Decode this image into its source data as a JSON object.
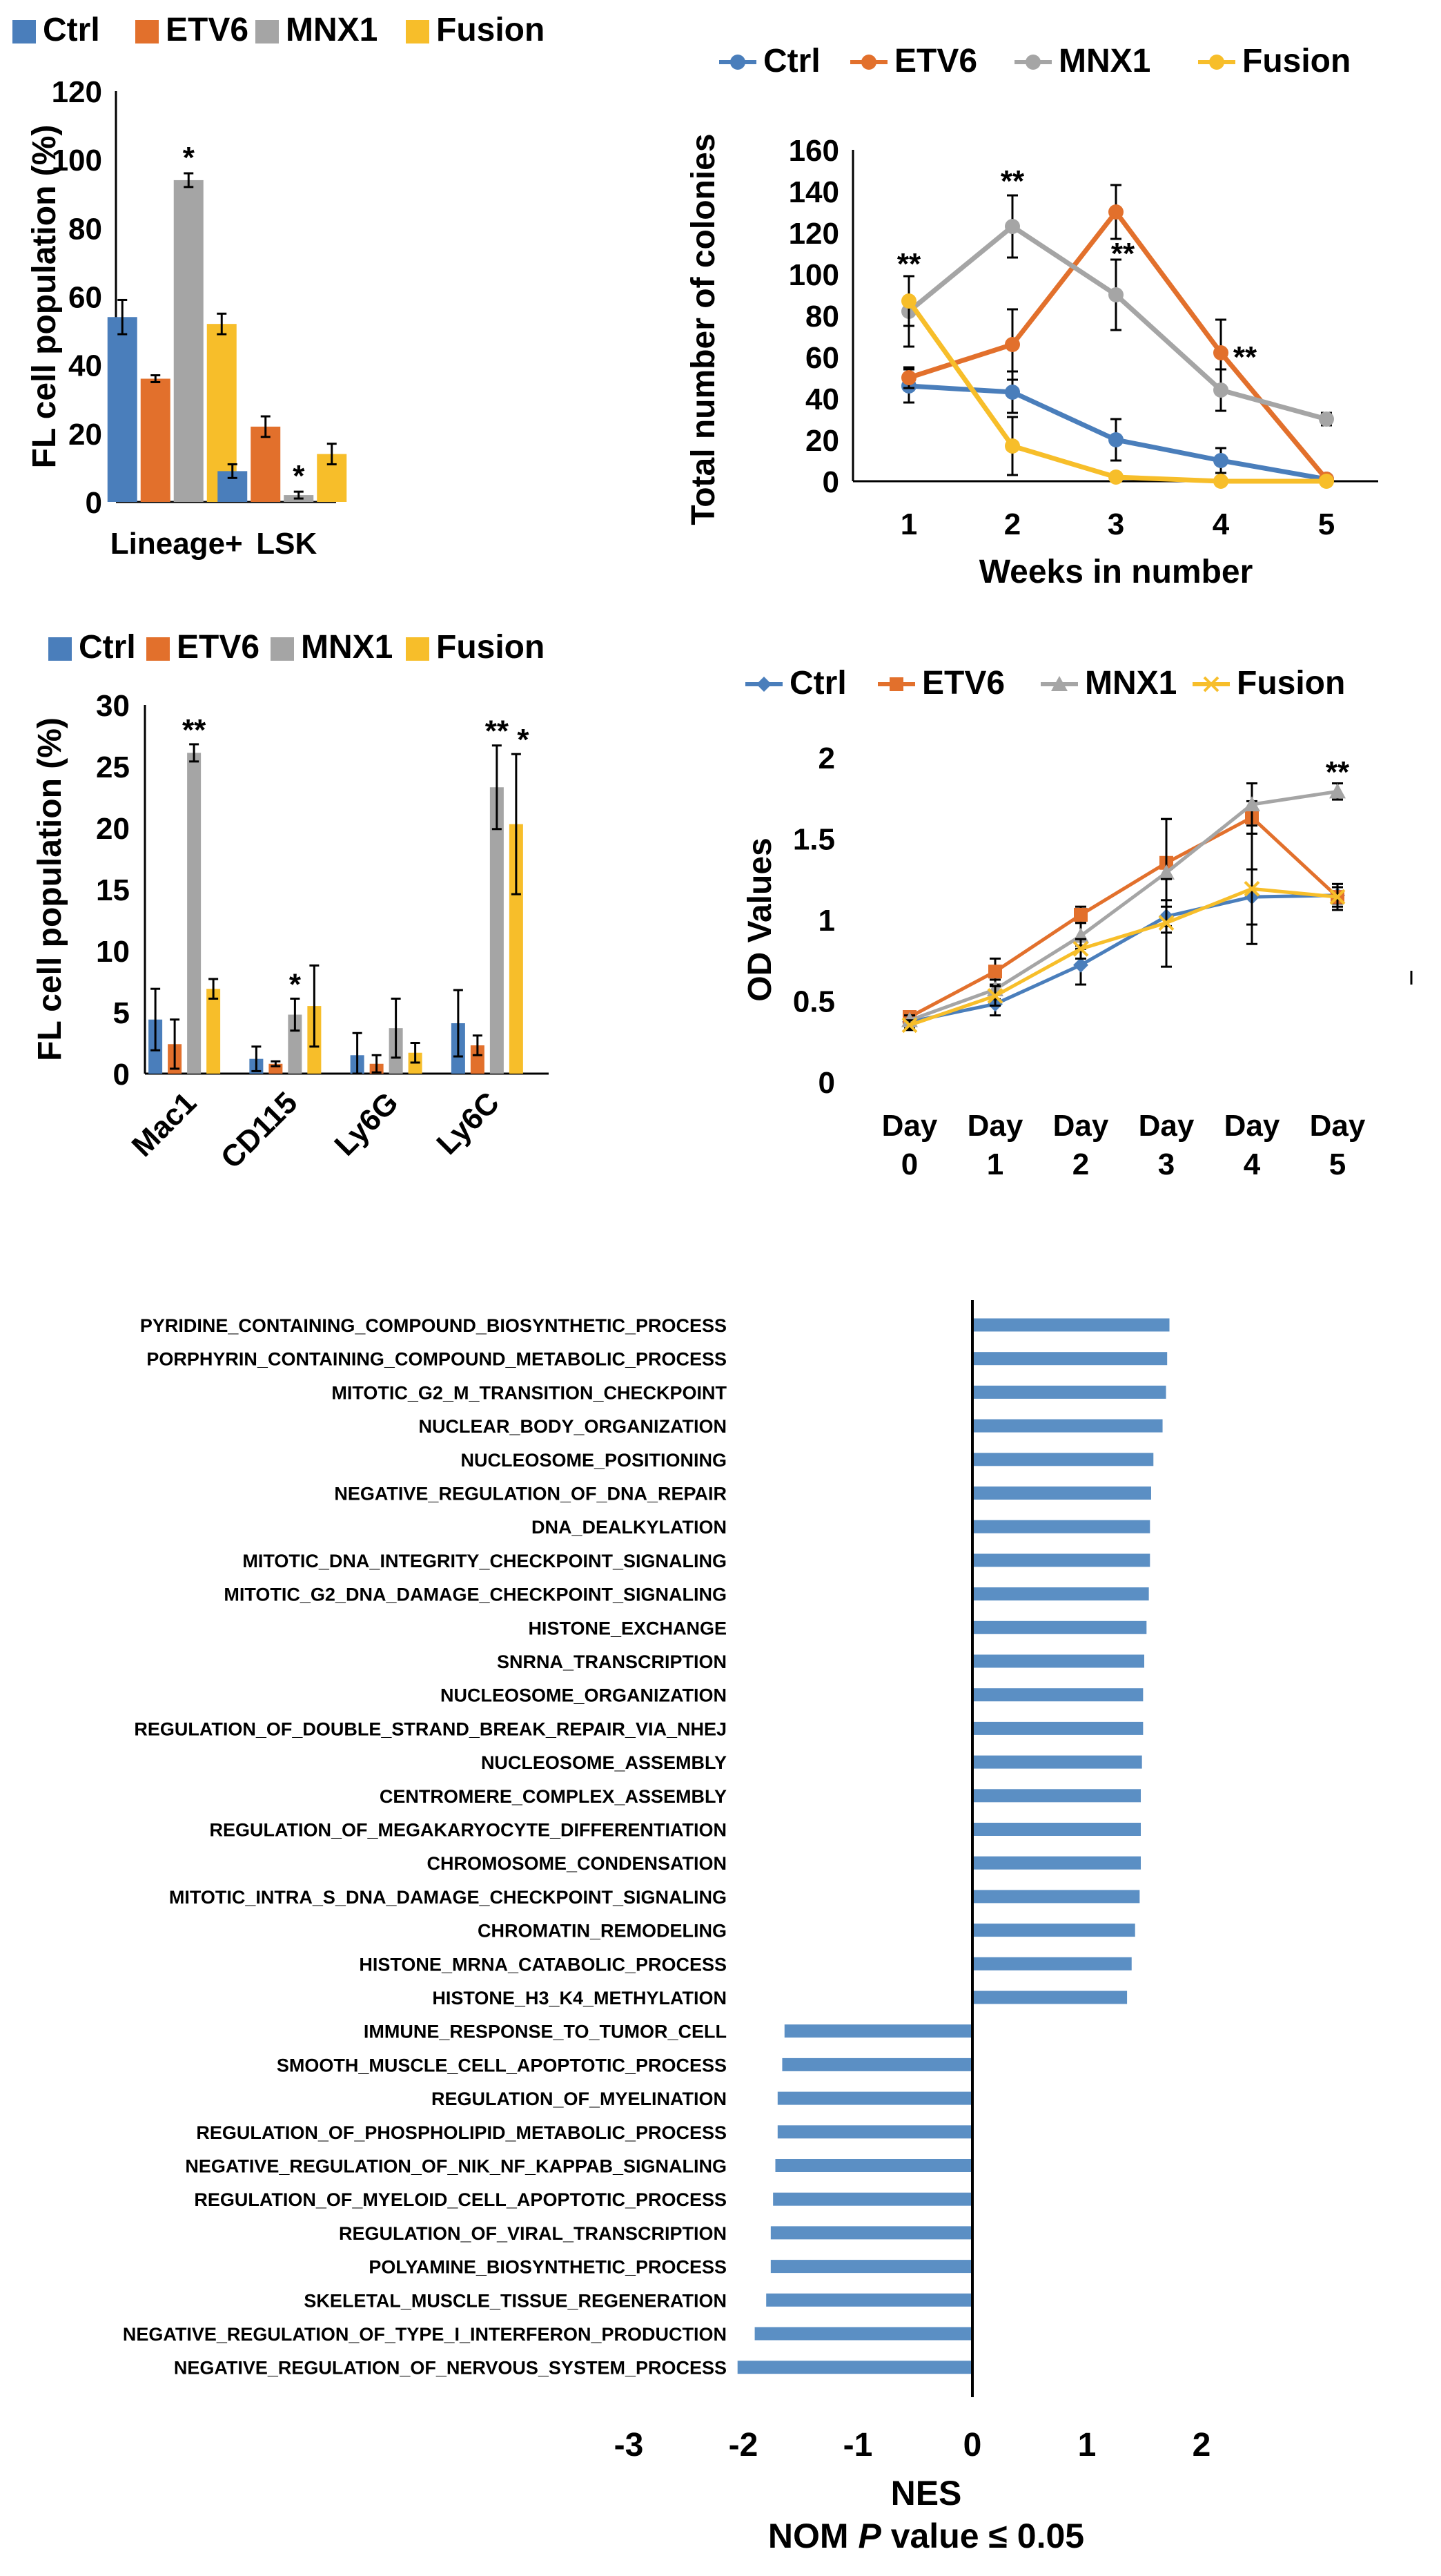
{
  "colors": {
    "Ctrl": "#4a7ebb",
    "ETV6": "#e2702c",
    "MNX1": "#a5a5a5",
    "Fusion": "#f7be2a",
    "gsea_bar": "#5b8fc4"
  },
  "chart_data": [
    {
      "id": "fl_lineage",
      "type": "bar",
      "legend": [
        "Ctrl",
        "ETV6",
        "MNX1",
        "Fusion"
      ],
      "categories": [
        "Lineage+",
        "LSK"
      ],
      "series": [
        {
          "name": "Ctrl",
          "values": [
            54,
            9
          ],
          "errors": [
            5,
            2
          ]
        },
        {
          "name": "ETV6",
          "values": [
            36,
            22
          ],
          "errors": [
            1,
            3
          ]
        },
        {
          "name": "MNX1",
          "values": [
            94,
            2
          ],
          "errors": [
            2,
            1
          ]
        },
        {
          "name": "Fusion",
          "values": [
            52,
            14
          ],
          "errors": [
            3,
            3
          ]
        }
      ],
      "annotations": [
        {
          "category": 0,
          "series": "MNX1",
          "text": "*"
        },
        {
          "category": 1,
          "series": "MNX1",
          "text": "*"
        }
      ],
      "ylabel": "FL cell population (%)",
      "ylim": [
        0,
        120
      ],
      "yticks": [
        "0",
        "20",
        "40",
        "60",
        "80",
        "100",
        "120"
      ]
    },
    {
      "id": "colonies",
      "type": "line",
      "legend": [
        "Ctrl",
        "ETV6",
        "MNX1",
        "Fusion"
      ],
      "x": [
        "1",
        "2",
        "3",
        "4",
        "5"
      ],
      "series": [
        {
          "name": "Ctrl",
          "values": [
            46,
            43,
            20,
            10,
            1
          ],
          "errors": [
            8,
            10,
            10,
            6,
            1
          ]
        },
        {
          "name": "ETV6",
          "values": [
            50,
            66,
            130,
            62,
            1
          ],
          "errors": [
            5,
            17,
            13,
            16,
            1
          ]
        },
        {
          "name": "MNX1",
          "values": [
            82,
            123,
            90,
            44,
            30
          ],
          "errors": [
            17,
            15,
            17,
            10,
            3
          ]
        },
        {
          "name": "Fusion",
          "values": [
            87,
            17,
            2,
            0,
            0
          ],
          "errors": [
            12,
            14,
            1,
            0,
            0
          ]
        }
      ],
      "annotations": [
        {
          "index": 0,
          "value": 100,
          "text": "**"
        },
        {
          "index": 1,
          "value": 140,
          "text": "**"
        },
        {
          "index": 2,
          "value": 105,
          "text": "**"
        },
        {
          "index": 3,
          "value": 55,
          "text": "**"
        }
      ],
      "xlabel": "Weeks in number",
      "ylabel": "Total number of colonies",
      "ylim": [
        0,
        160
      ],
      "yticks": [
        "0",
        "20",
        "40",
        "60",
        "80",
        "100",
        "120",
        "140",
        "160"
      ]
    },
    {
      "id": "fl_myeloid",
      "type": "bar",
      "legend": [
        "Ctrl",
        "ETV6",
        "MNX1",
        "Fusion"
      ],
      "categories": [
        "Mac1",
        "CD115",
        "Ly6G",
        "Ly6C"
      ],
      "series": [
        {
          "name": "Ctrl",
          "values": [
            4.4,
            1.2,
            1.5,
            4.1
          ],
          "errors": [
            2.5,
            1.0,
            1.8,
            2.7
          ]
        },
        {
          "name": "ETV6",
          "values": [
            2.4,
            0.8,
            0.8,
            2.3
          ],
          "errors": [
            2.0,
            0.2,
            0.7,
            0.8
          ]
        },
        {
          "name": "MNX1",
          "values": [
            26.1,
            4.8,
            3.7,
            23.3
          ],
          "errors": [
            0.7,
            1.3,
            2.4,
            3.4
          ]
        },
        {
          "name": "Fusion",
          "values": [
            6.9,
            5.5,
            1.7,
            20.3
          ],
          "errors": [
            0.8,
            3.3,
            0.8,
            5.7
          ]
        }
      ],
      "annotations": [
        {
          "category": 0,
          "series": "MNX1",
          "text": "**"
        },
        {
          "category": 1,
          "series": "MNX1",
          "text": "*"
        },
        {
          "category": 3,
          "series": "MNX1",
          "text": "**"
        },
        {
          "category": 3,
          "series": "Fusion",
          "text": "*"
        }
      ],
      "ylabel": "FL cell population (%)",
      "ylim": [
        0,
        30
      ],
      "yticks": [
        "0",
        "5",
        "10",
        "15",
        "20",
        "25",
        "30"
      ]
    },
    {
      "id": "od_values",
      "type": "line",
      "legend": [
        "Ctrl",
        "ETV6",
        "MNX1",
        "Fusion"
      ],
      "x": [
        "Day 0",
        "Day 1",
        "Day 2",
        "Day 3",
        "Day 4",
        "Day 5"
      ],
      "x_lines": [
        [
          "Day",
          "0"
        ],
        [
          "Day",
          "1"
        ],
        [
          "Day",
          "2"
        ],
        [
          "Day",
          "3"
        ],
        [
          "Day",
          "4"
        ],
        [
          "Day",
          "5"
        ]
      ],
      "series": [
        {
          "name": "Ctrl",
          "values": [
            0.37,
            0.48,
            0.72,
            1.02,
            1.14,
            1.15
          ],
          "errors": [
            0.04,
            0.07,
            0.12,
            0.1,
            0.17,
            0.05
          ],
          "marker": "diamond"
        },
        {
          "name": "ETV6",
          "values": [
            0.4,
            0.68,
            1.03,
            1.35,
            1.63,
            1.14
          ],
          "errors": [
            0.03,
            0.08,
            0.05,
            0.27,
            0.1,
            0.08
          ],
          "marker": "square"
        },
        {
          "name": "MNX1",
          "values": [
            0.38,
            0.57,
            0.9,
            1.29,
            1.71,
            1.79
          ],
          "errors": [
            0.03,
            0.06,
            0.08,
            0.33,
            0.13,
            0.05
          ],
          "marker": "triangle"
        },
        {
          "name": "Fusion",
          "values": [
            0.35,
            0.53,
            0.82,
            0.98,
            1.19,
            1.14
          ],
          "errors": [
            0.03,
            0.06,
            0.06,
            0.27,
            0.34,
            0.06
          ],
          "marker": "x"
        }
      ],
      "annotations": [
        {
          "index": 5,
          "value": 1.88,
          "text": "**"
        }
      ],
      "ylabel": "OD Values",
      "ylim": [
        0,
        2
      ],
      "yticks": [
        "0",
        "0.5",
        "1",
        "1.5",
        "2"
      ]
    },
    {
      "id": "gsea_nes",
      "type": "bar",
      "orientation": "horizontal",
      "categories": [
        "PYRIDINE_CONTAINING_COMPOUND_BIOSYNTHETIC_PROCESS",
        "PORPHYRIN_CONTAINING_COMPOUND_METABOLIC_PROCESS",
        "MITOTIC_G2_M_TRANSITION_CHECKPOINT",
        "NUCLEAR_BODY_ORGANIZATION",
        "NUCLEOSOME_POSITIONING",
        "NEGATIVE_REGULATION_OF_DNA_REPAIR",
        "DNA_DEALKYLATION",
        "MITOTIC_DNA_INTEGRITY_CHECKPOINT_SIGNALING",
        "MITOTIC_G2_DNA_DAMAGE_CHECKPOINT_SIGNALING",
        "HISTONE_EXCHANGE",
        "SNRNA_TRANSCRIPTION",
        "NUCLEOSOME_ORGANIZATION",
        "REGULATION_OF_DOUBLE_STRAND_BREAK_REPAIR_VIA_NHEJ",
        "NUCLEOSOME_ASSEMBLY",
        "CENTROMERE_COMPLEX_ASSEMBLY",
        "REGULATION_OF_MEGAKARYOCYTE_DIFFERENTIATION",
        "CHROMOSOME_CONDENSATION",
        "MITOTIC_INTRA_S_DNA_DAMAGE_CHECKPOINT_SIGNALING",
        "CHROMATIN_REMODELING",
        "HISTONE_MRNA_CATABOLIC_PROCESS",
        "HISTONE_H3_K4_METHYLATION",
        "IMMUNE_RESPONSE_TO_TUMOR_CELL",
        "SMOOTH_MUSCLE_CELL_APOPTOTIC_PROCESS",
        "REGULATION_OF_MYELINATION",
        "REGULATION_OF_PHOSPHOLIPID_METABOLIC_PROCESS",
        "NEGATIVE_REGULATION_OF_NIK_NF_KAPPAB_SIGNALING",
        "REGULATION_OF_MYELOID_CELL_APOPTOTIC_PROCESS",
        "REGULATION_OF_VIRAL_TRANSCRIPTION",
        "POLYAMINE_BIOSYNTHETIC_PROCESS",
        "SKELETAL_MUSCLE_TISSUE_REGENERATION",
        "NEGATIVE_REGULATION_OF_TYPE_I_INTERFERON_PRODUCTION",
        "NEGATIVE_REGULATION_OF_NERVOUS_SYSTEM_PROCESS"
      ],
      "values": [
        1.72,
        1.7,
        1.69,
        1.66,
        1.58,
        1.56,
        1.55,
        1.55,
        1.54,
        1.52,
        1.5,
        1.49,
        1.49,
        1.48,
        1.47,
        1.47,
        1.47,
        1.46,
        1.42,
        1.39,
        1.35,
        -1.64,
        -1.66,
        -1.7,
        -1.7,
        -1.72,
        -1.74,
        -1.76,
        -1.76,
        -1.8,
        -1.9,
        -2.05
      ],
      "xlabel": "NES",
      "subtitle_parts": [
        "NOM ",
        "P",
        " value ≤ 0.05"
      ],
      "xlim": [
        -3,
        2
      ],
      "xticks": [
        "-3",
        "-2",
        "-1",
        "0",
        "1",
        "2"
      ]
    }
  ]
}
